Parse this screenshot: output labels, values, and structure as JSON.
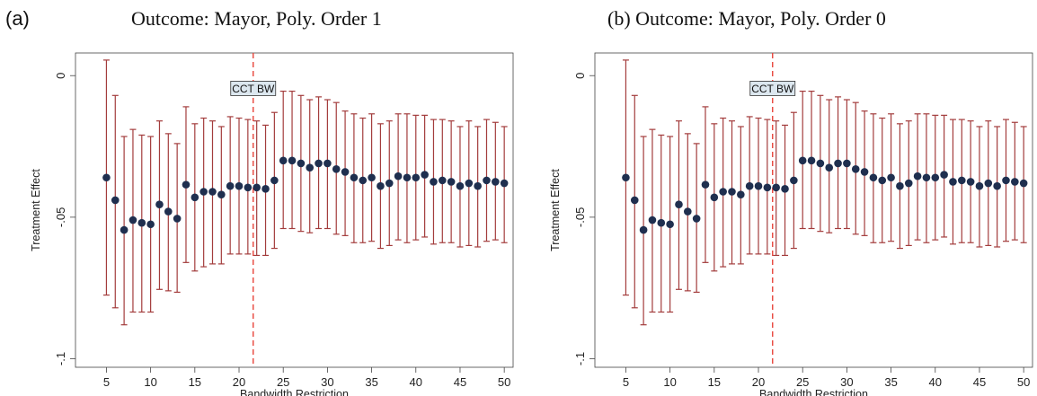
{
  "panels": [
    {
      "tag": "(a)",
      "title": "Outcome: Mayor, Poly. Order 1"
    },
    {
      "tag": "",
      "title": "(b) Outcome: Mayor, Poly. Order 0"
    }
  ],
  "chart_data": [
    {
      "type": "scatter",
      "title": "Outcome: Mayor, Poly. Order 1",
      "xlabel": "Bandwidth Restriction",
      "ylabel": "Treatment Effect",
      "xlim": [
        1.5,
        51
      ],
      "ylim": [
        -0.103,
        0.008
      ],
      "xticks": [
        5,
        10,
        15,
        20,
        25,
        30,
        35,
        40,
        45,
        50
      ],
      "xtick_labels": [
        "5",
        "10",
        "15",
        "20",
        "25",
        "30",
        "35",
        "40",
        "45",
        "50"
      ],
      "yticks": [
        0,
        -0.05,
        -0.1
      ],
      "ytick_labels": [
        "0",
        "-.05",
        "-.1"
      ],
      "grid": false,
      "vline": {
        "x": 21.6,
        "label": "CCT BW",
        "color": "#e8443a"
      },
      "marker_color": "#1f2f4f",
      "ci_color": "#a33c3c",
      "x": [
        5,
        6,
        7,
        8,
        9,
        10,
        11,
        12,
        13,
        14,
        15,
        16,
        17,
        18,
        19,
        20,
        21,
        22,
        23,
        24,
        25,
        26,
        27,
        28,
        29,
        30,
        31,
        32,
        33,
        34,
        35,
        36,
        37,
        38,
        39,
        40,
        41,
        42,
        43,
        44,
        45,
        46,
        47,
        48,
        49,
        50
      ],
      "y": [
        -0.036,
        -0.044,
        -0.0545,
        -0.051,
        -0.052,
        -0.0525,
        -0.0455,
        -0.048,
        -0.0505,
        -0.0385,
        -0.043,
        -0.041,
        -0.041,
        -0.042,
        -0.039,
        -0.039,
        -0.0395,
        -0.0395,
        -0.04,
        -0.037,
        -0.03,
        -0.03,
        -0.031,
        -0.0325,
        -0.031,
        -0.031,
        -0.033,
        -0.034,
        -0.036,
        -0.037,
        -0.036,
        -0.039,
        -0.038,
        -0.0355,
        -0.036,
        -0.036,
        -0.035,
        -0.0375,
        -0.037,
        -0.0375,
        -0.039,
        -0.038,
        -0.039,
        -0.037,
        -0.0375,
        -0.038
      ],
      "ci_lower": [
        -0.0775,
        -0.082,
        -0.088,
        -0.0835,
        -0.0835,
        -0.0835,
        -0.0755,
        -0.076,
        -0.0765,
        -0.066,
        -0.069,
        -0.0675,
        -0.0665,
        -0.0665,
        -0.063,
        -0.063,
        -0.063,
        -0.0635,
        -0.0635,
        -0.061,
        -0.054,
        -0.054,
        -0.055,
        -0.0555,
        -0.054,
        -0.054,
        -0.056,
        -0.0565,
        -0.059,
        -0.059,
        -0.0585,
        -0.061,
        -0.06,
        -0.058,
        -0.059,
        -0.058,
        -0.057,
        -0.0595,
        -0.059,
        -0.059,
        -0.0605,
        -0.06,
        -0.0605,
        -0.0585,
        -0.058,
        -0.059
      ],
      "ci_upper": [
        0.0055,
        -0.007,
        -0.0215,
        -0.019,
        -0.021,
        -0.0215,
        -0.016,
        -0.0205,
        -0.024,
        -0.011,
        -0.017,
        -0.015,
        -0.016,
        -0.018,
        -0.0145,
        -0.015,
        -0.0155,
        -0.016,
        -0.0175,
        -0.013,
        -0.0055,
        -0.0055,
        -0.007,
        -0.0085,
        -0.0075,
        -0.0085,
        -0.0095,
        -0.0125,
        -0.0135,
        -0.015,
        -0.0135,
        -0.017,
        -0.016,
        -0.0135,
        -0.0135,
        -0.014,
        -0.014,
        -0.0155,
        -0.0155,
        -0.016,
        -0.018,
        -0.016,
        -0.018,
        -0.0155,
        -0.0165,
        -0.018
      ]
    },
    {
      "type": "scatter",
      "title": "Outcome: Mayor, Poly. Order 0",
      "xlabel": "Bandwidth Restriction",
      "ylabel": "Treatment Effect",
      "xlim": [
        1.5,
        51
      ],
      "ylim": [
        -0.103,
        0.008
      ],
      "xticks": [
        5,
        10,
        15,
        20,
        25,
        30,
        35,
        40,
        45,
        50
      ],
      "xtick_labels": [
        "5",
        "10",
        "15",
        "20",
        "25",
        "30",
        "35",
        "40",
        "45",
        "50"
      ],
      "yticks": [
        0,
        -0.05,
        -0.1
      ],
      "ytick_labels": [
        "0",
        "-.05",
        "-.1"
      ],
      "grid": false,
      "vline": {
        "x": 21.6,
        "label": "CCT BW",
        "color": "#e8443a"
      },
      "marker_color": "#1f2f4f",
      "ci_color": "#a33c3c",
      "x": [
        5,
        6,
        7,
        8,
        9,
        10,
        11,
        12,
        13,
        14,
        15,
        16,
        17,
        18,
        19,
        20,
        21,
        22,
        23,
        24,
        25,
        26,
        27,
        28,
        29,
        30,
        31,
        32,
        33,
        34,
        35,
        36,
        37,
        38,
        39,
        40,
        41,
        42,
        43,
        44,
        45,
        46,
        47,
        48,
        49,
        50
      ],
      "y": [
        -0.036,
        -0.044,
        -0.0545,
        -0.051,
        -0.052,
        -0.0525,
        -0.0455,
        -0.048,
        -0.0505,
        -0.0385,
        -0.043,
        -0.041,
        -0.041,
        -0.042,
        -0.039,
        -0.039,
        -0.0395,
        -0.0395,
        -0.04,
        -0.037,
        -0.03,
        -0.03,
        -0.031,
        -0.0325,
        -0.031,
        -0.031,
        -0.033,
        -0.034,
        -0.036,
        -0.037,
        -0.036,
        -0.039,
        -0.038,
        -0.0355,
        -0.036,
        -0.036,
        -0.035,
        -0.0375,
        -0.037,
        -0.0375,
        -0.039,
        -0.038,
        -0.039,
        -0.037,
        -0.0375,
        -0.038
      ],
      "ci_lower": [
        -0.0775,
        -0.082,
        -0.088,
        -0.0835,
        -0.0835,
        -0.0835,
        -0.0755,
        -0.076,
        -0.0765,
        -0.066,
        -0.069,
        -0.0675,
        -0.0665,
        -0.0665,
        -0.063,
        -0.063,
        -0.063,
        -0.0635,
        -0.0635,
        -0.061,
        -0.054,
        -0.054,
        -0.055,
        -0.0555,
        -0.054,
        -0.054,
        -0.056,
        -0.0565,
        -0.059,
        -0.059,
        -0.0585,
        -0.061,
        -0.06,
        -0.058,
        -0.059,
        -0.058,
        -0.057,
        -0.0595,
        -0.059,
        -0.059,
        -0.0605,
        -0.06,
        -0.0605,
        -0.0585,
        -0.058,
        -0.059
      ],
      "ci_upper": [
        0.0055,
        -0.007,
        -0.0215,
        -0.019,
        -0.021,
        -0.0215,
        -0.016,
        -0.0205,
        -0.024,
        -0.011,
        -0.017,
        -0.015,
        -0.016,
        -0.018,
        -0.0145,
        -0.015,
        -0.0155,
        -0.016,
        -0.0175,
        -0.013,
        -0.0055,
        -0.0055,
        -0.007,
        -0.0085,
        -0.0075,
        -0.0085,
        -0.0095,
        -0.0125,
        -0.0135,
        -0.015,
        -0.0135,
        -0.017,
        -0.016,
        -0.0135,
        -0.0135,
        -0.014,
        -0.014,
        -0.0155,
        -0.0155,
        -0.016,
        -0.018,
        -0.016,
        -0.018,
        -0.0155,
        -0.0165,
        -0.018
      ]
    }
  ]
}
